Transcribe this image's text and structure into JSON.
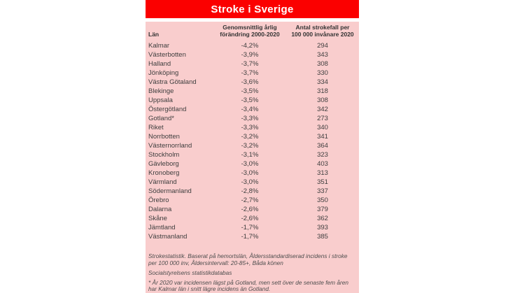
{
  "title": "Stroke i Sverige",
  "colors": {
    "header_red": "#FB0000",
    "panel_pink": "#F9CDCD",
    "title_text": "#FFFFFF",
    "body_text": "#3E3E3E"
  },
  "table": {
    "columns": {
      "col1": "Län",
      "col2_line1": "Genomsnittlig årlig",
      "col2_line2": "förändring 2000-2020",
      "col3_line1": "Antal strokefall per",
      "col3_line2": "100 000 invånare 2020"
    },
    "rows": [
      {
        "lan": "Kalmar",
        "change": "-4,2%",
        "cases": "294"
      },
      {
        "lan": "Västerbotten",
        "change": "-3,9%",
        "cases": "343"
      },
      {
        "lan": "Halland",
        "change": "-3,7%",
        "cases": "308"
      },
      {
        "lan": "Jönköping",
        "change": "-3,7%",
        "cases": "330"
      },
      {
        "lan": "Västra Götaland",
        "change": "-3,6%",
        "cases": "334"
      },
      {
        "lan": "Blekinge",
        "change": "-3,5%",
        "cases": "318"
      },
      {
        "lan": "Uppsala",
        "change": "-3,5%",
        "cases": "308"
      },
      {
        "lan": "Östergötland",
        "change": "-3,4%",
        "cases": "342"
      },
      {
        "lan": "Gotland*",
        "change": "-3,3%",
        "cases": "273"
      },
      {
        "lan": "Riket",
        "change": "-3,3%",
        "cases": "340"
      },
      {
        "lan": "Norrbotten",
        "change": "-3,2%",
        "cases": "341"
      },
      {
        "lan": "Västernorrland",
        "change": "-3,2%",
        "cases": "364"
      },
      {
        "lan": "Stockholm",
        "change": "-3,1%",
        "cases": "323"
      },
      {
        "lan": "Gävleborg",
        "change": "-3,0%",
        "cases": "403"
      },
      {
        "lan": "Kronoberg",
        "change": "-3,0%",
        "cases": "313"
      },
      {
        "lan": "Värmland",
        "change": "-3,0%",
        "cases": "351"
      },
      {
        "lan": "Södermanland",
        "change": "-2,8%",
        "cases": "337"
      },
      {
        "lan": "Örebro",
        "change": "-2,7%",
        "cases": "350"
      },
      {
        "lan": "Dalarna",
        "change": "-2,6%",
        "cases": "379"
      },
      {
        "lan": "Skåne",
        "change": "-2,6%",
        "cases": "362"
      },
      {
        "lan": "Jämtland",
        "change": "-1,7%",
        "cases": "393"
      },
      {
        "lan": "Västmanland",
        "change": "-1,7%",
        "cases": "385"
      }
    ]
  },
  "footnotes": {
    "source_line1": "Strokestatistik. Baserat på hemortslän, Åldersstandardiserad incidens i stroke per 100 000 inv, Åldersintervall: 20-85+, Båda könen",
    "source_line2": "Socialstyrelsens statistikdatabas",
    "asterisk_note": "* År 2020 var incidensen lägst på Gotland, men sett över de senaste fem åren har Kalmar län i snitt lägre incidens än Gotland."
  },
  "chart_data": {
    "type": "table",
    "title": "Stroke i Sverige",
    "columns": [
      "Län",
      "Genomsnittlig årlig förändring 2000-2020",
      "Antal strokefall per 100 000 invånare 2020"
    ],
    "rows": [
      [
        "Kalmar",
        "-4,2%",
        294
      ],
      [
        "Västerbotten",
        "-3,9%",
        343
      ],
      [
        "Halland",
        "-3,7%",
        308
      ],
      [
        "Jönköping",
        "-3,7%",
        330
      ],
      [
        "Västra Götaland",
        "-3,6%",
        334
      ],
      [
        "Blekinge",
        "-3,5%",
        318
      ],
      [
        "Uppsala",
        "-3,5%",
        308
      ],
      [
        "Östergötland",
        "-3,4%",
        342
      ],
      [
        "Gotland*",
        "-3,3%",
        273
      ],
      [
        "Riket",
        "-3,3%",
        340
      ],
      [
        "Norrbotten",
        "-3,2%",
        341
      ],
      [
        "Västernorrland",
        "-3,2%",
        364
      ],
      [
        "Stockholm",
        "-3,1%",
        323
      ],
      [
        "Gävleborg",
        "-3,0%",
        403
      ],
      [
        "Kronoberg",
        "-3,0%",
        313
      ],
      [
        "Värmland",
        "-3,0%",
        351
      ],
      [
        "Södermanland",
        "-2,8%",
        337
      ],
      [
        "Örebro",
        "-2,7%",
        350
      ],
      [
        "Dalarna",
        "-2,6%",
        379
      ],
      [
        "Skåne",
        "-2,6%",
        362
      ],
      [
        "Jämtland",
        "-1,7%",
        393
      ],
      [
        "Västmanland",
        "-1,7%",
        385
      ]
    ],
    "notes": [
      "Strokestatistik. Baserat på hemortslän, Åldersstandardiserad incidens i stroke per 100 000 inv, Åldersintervall: 20-85+, Båda könen",
      "Socialstyrelsens statistikdatabas",
      "* År 2020 var incidensen lägst på Gotland, men sett över de senaste fem åren har Kalmar län i snitt lägre incidens än Gotland."
    ]
  }
}
